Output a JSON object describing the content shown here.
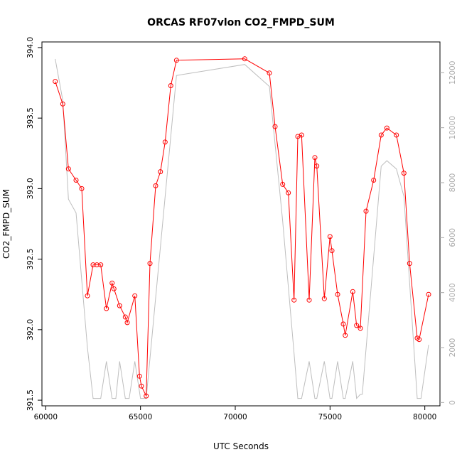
{
  "chart_data": {
    "type": "line",
    "title": "ORCAS RF07vlon CO2_FMPD_SUM",
    "xlabel": "UTC Seconds",
    "ylabel": "CO2_FMPD_SUM",
    "xlim": [
      59800,
      80800
    ],
    "ylim": [
      391.46,
      394.04
    ],
    "y2lim": [
      -120,
      13120
    ],
    "x_ticks": [
      60000,
      65000,
      70000,
      75000,
      80000
    ],
    "y_ticks": [
      391.5,
      392.0,
      392.5,
      393.0,
      393.5,
      394.0
    ],
    "y_tick_labels": [
      "391.5",
      "392.0",
      "392.5",
      "393.0",
      "393.5",
      "394.0"
    ],
    "y2_ticks": [
      0,
      2000,
      4000,
      6000,
      8000,
      10000,
      12000
    ],
    "grid": false,
    "colors": {
      "co2": "#ff0000",
      "altitude": "#bebebe",
      "axes": "#000000",
      "right_axis": "#aaaaaa"
    },
    "series": [
      {
        "role": "co2",
        "x": [
          60500,
          60900,
          61200,
          61600,
          61900,
          62200,
          62500,
          62700,
          62900,
          63200,
          63500,
          63600,
          63900,
          64200,
          64300,
          64700,
          64950,
          65050,
          65300,
          65500,
          65800,
          66050,
          66300,
          66600,
          66900,
          70500,
          71800,
          72100,
          72500,
          72800,
          73100,
          73300,
          73500,
          73900,
          74200,
          74300,
          74700,
          75000,
          75100,
          75400,
          75700,
          75800,
          76200,
          76400,
          76600,
          76900,
          77300,
          77700,
          78000,
          78500,
          78900,
          79200,
          79600,
          79700,
          80200
        ],
        "y": [
          393.76,
          393.6,
          393.14,
          393.06,
          393.0,
          392.24,
          392.46,
          392.46,
          392.46,
          392.15,
          392.33,
          392.29,
          392.17,
          392.09,
          392.05,
          392.24,
          391.67,
          391.6,
          391.53,
          392.47,
          393.02,
          393.12,
          393.33,
          393.73,
          393.91,
          393.92,
          393.82,
          393.44,
          393.03,
          392.97,
          392.21,
          393.37,
          393.38,
          392.21,
          393.22,
          393.16,
          392.22,
          392.66,
          392.56,
          392.25,
          392.04,
          391.96,
          392.27,
          392.03,
          392.01,
          392.84,
          393.06,
          393.38,
          393.43,
          393.38,
          393.11,
          392.47,
          391.94,
          391.93,
          392.25
        ]
      },
      {
        "role": "altitude",
        "x": [
          60500,
          60900,
          61200,
          61600,
          62200,
          62500,
          62900,
          63200,
          63500,
          63700,
          63900,
          64200,
          64400,
          64700,
          65000,
          65300,
          66900,
          70500,
          71800,
          72500,
          73100,
          73300,
          73500,
          73900,
          74200,
          74300,
          74700,
          75000,
          75100,
          75400,
          75700,
          75800,
          76200,
          76400,
          76600,
          76700,
          77700,
          78000,
          78500,
          78900,
          79600,
          79800,
          80200
        ],
        "y": [
          12500,
          11000,
          7400,
          6900,
          2000,
          150,
          150,
          1500,
          150,
          150,
          1500,
          150,
          150,
          1500,
          150,
          150,
          11900,
          12300,
          11500,
          6600,
          1800,
          150,
          150,
          1500,
          150,
          150,
          1500,
          150,
          150,
          1500,
          150,
          150,
          1500,
          150,
          300,
          300,
          8600,
          8800,
          8500,
          7500,
          150,
          150,
          2100
        ]
      }
    ]
  }
}
